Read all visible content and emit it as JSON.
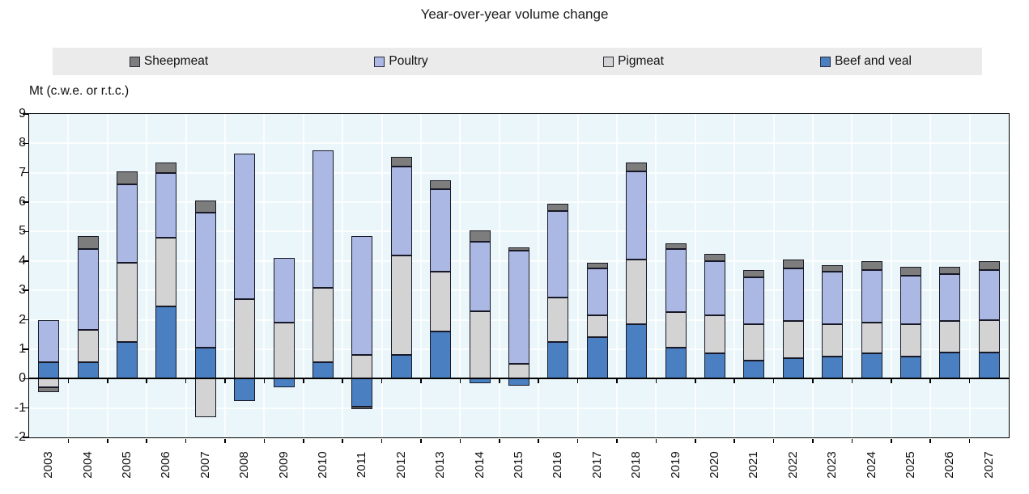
{
  "chart_data": {
    "type": "bar",
    "stacked": true,
    "title": "Year-over-year volume change",
    "ylabel": "Mt (c.w.e. or r.t.c.)",
    "xlabel": "",
    "ylim": [
      -2,
      9
    ],
    "yticks": [
      9,
      8,
      7,
      6,
      5,
      4,
      3,
      2,
      1,
      0,
      -1,
      -2
    ],
    "grid": true,
    "legend_position": "top",
    "legend_order": [
      "Sheepmeat",
      "Poultry",
      "Pigmeat",
      "Beef and veal"
    ],
    "categories": [
      "2003",
      "2004",
      "2005",
      "2006",
      "2007",
      "2008",
      "2009",
      "2010",
      "2011",
      "2012",
      "2013",
      "2014",
      "2015",
      "2016",
      "2017",
      "2018",
      "2019",
      "2020",
      "2021",
      "2022",
      "2023",
      "2024",
      "2025",
      "2026",
      "2027"
    ],
    "series": [
      {
        "name": "Beef and veal",
        "color": "#4a80c1",
        "values": [
          0.55,
          0.55,
          1.25,
          2.45,
          1.05,
          -0.75,
          -0.3,
          0.55,
          -0.95,
          0.8,
          1.6,
          -0.15,
          -0.25,
          1.25,
          1.4,
          1.85,
          1.05,
          0.85,
          0.6,
          0.7,
          0.75,
          0.85,
          0.75,
          0.9,
          0.9
        ]
      },
      {
        "name": "Pigmeat",
        "color": "#d3d3d3",
        "values": [
          -0.3,
          1.1,
          2.7,
          2.35,
          -1.3,
          2.7,
          1.9,
          2.55,
          0.8,
          3.4,
          2.05,
          2.3,
          0.5,
          1.5,
          0.75,
          2.2,
          1.2,
          1.3,
          1.25,
          1.25,
          1.1,
          1.05,
          1.1,
          1.05,
          1.1
        ]
      },
      {
        "name": "Poultry",
        "color": "#aab8e3",
        "values": [
          1.45,
          2.75,
          2.65,
          2.2,
          4.6,
          4.95,
          2.2,
          4.65,
          4.05,
          3.0,
          2.8,
          2.35,
          3.85,
          2.95,
          1.6,
          3.0,
          2.15,
          1.85,
          1.6,
          1.8,
          1.8,
          1.8,
          1.65,
          1.6,
          1.7
        ]
      },
      {
        "name": "Sheepmeat",
        "color": "#7d7d7d",
        "values": [
          -0.15,
          0.45,
          0.45,
          0.35,
          0.4,
          0,
          0,
          0,
          -0.1,
          0.35,
          0.3,
          0.4,
          0.1,
          0.25,
          0.2,
          0.3,
          0.2,
          0.25,
          0.25,
          0.3,
          0.2,
          0.3,
          0.3,
          0.25,
          0.3
        ]
      }
    ],
    "colors": {
      "plot_background": "#eaf6f9",
      "gridline": "#ffffff",
      "legend_background": "#ebebeb",
      "axis": "#000000",
      "segment_border": "#181826"
    }
  }
}
